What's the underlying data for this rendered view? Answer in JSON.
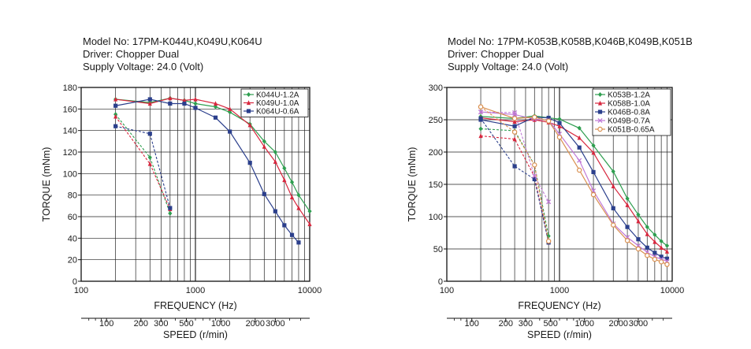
{
  "colors": {
    "series1": "#2e9e4f",
    "series2": "#d7263d",
    "series3": "#2b3f8c",
    "series4": "#c17ad6",
    "series5": "#d99050",
    "grid": "#222222",
    "frame": "#111111"
  },
  "chart_data": [
    {
      "type": "line",
      "header": [
        "Model No: 17PM-K044U,K049U,K064U",
        "Driver: Chopper Dual",
        "Supply Voltage: 24.0 (Volt)"
      ],
      "xlabel": "FREQUENCY (Hz)",
      "ylabel": "TORQUE (mNm)",
      "x2label": "SPEED (r/min)",
      "x_scale": "log",
      "xlim": [
        100,
        10000
      ],
      "ylim": [
        0,
        180
      ],
      "x_ticks": [
        "100",
        "1000",
        "10000"
      ],
      "y_ticks": [
        "0",
        "20",
        "40",
        "60",
        "80",
        "100",
        "120",
        "140",
        "160",
        "180"
      ],
      "speed_ticks": [
        "100",
        "200",
        "300",
        "500",
        "1000",
        "2000",
        "3000"
      ],
      "legend_position": "top-right",
      "grid": true,
      "series": [
        {
          "name": "K044U-1.2A",
          "color_key": "series1",
          "marker": "diamond",
          "pullin_x": [
            200,
            400,
            600
          ],
          "pullin_y": [
            155,
            115,
            63
          ],
          "pullout_x": [
            200,
            400,
            600,
            800,
            1000,
            1500,
            2000,
            3000,
            4000,
            5000,
            6000,
            7000,
            8000,
            10000
          ],
          "pullout_y": [
            169,
            166,
            170,
            168,
            165,
            162,
            157,
            146,
            130,
            120,
            105,
            92,
            80,
            65
          ]
        },
        {
          "name": "K049U-1.0A",
          "color_key": "series2",
          "marker": "triangle",
          "pullin_x": [
            200,
            400,
            600
          ],
          "pullin_y": [
            153,
            109,
            67
          ],
          "pullout_x": [
            200,
            400,
            600,
            800,
            1000,
            1500,
            2000,
            3000,
            4000,
            5000,
            6000,
            7000,
            8000,
            10000
          ],
          "pullout_y": [
            169,
            165,
            170,
            168,
            169,
            165,
            160,
            145,
            125,
            111,
            94,
            78,
            68,
            53
          ]
        },
        {
          "name": "K064U-0.6A",
          "color_key": "series3",
          "marker": "square",
          "pullin_x": [
            200,
            400,
            600
          ],
          "pullin_y": [
            144,
            137,
            68
          ],
          "pullout_x": [
            200,
            400,
            600,
            800,
            1000,
            1500,
            2000,
            3000,
            4000,
            5000,
            6000,
            7000,
            8000
          ],
          "pullout_y": [
            163,
            169,
            165,
            165,
            161,
            152,
            139,
            110,
            81,
            65,
            52,
            43,
            36
          ]
        }
      ]
    },
    {
      "type": "line",
      "header": [
        "Model No: 17PM-K053B,K058B,K046B,K049B,K051B",
        "Driver: Chopper Dual",
        "Supply Voltage: 24.0 (Volt)"
      ],
      "xlabel": "FREQUENCY (Hz)",
      "ylabel": "TORQUE (mNm)",
      "x2label": "SPEED (r/min)",
      "x_scale": "log",
      "xlim": [
        100,
        10000
      ],
      "ylim": [
        0,
        300
      ],
      "x_ticks": [
        "100",
        "1000",
        "10000"
      ],
      "y_ticks": [
        "0",
        "50",
        "100",
        "150",
        "200",
        "250",
        "300"
      ],
      "speed_ticks": [
        "100",
        "200",
        "300",
        "500",
        "1000",
        "2000",
        "3000"
      ],
      "legend_position": "top-right",
      "grid": true,
      "series": [
        {
          "name": "K053B-1.2A",
          "color_key": "series1",
          "marker": "diamond",
          "pullin_x": [
            200,
            400,
            600,
            800
          ],
          "pullin_y": [
            236,
            233,
            180,
            70
          ],
          "pullout_x": [
            200,
            400,
            600,
            800,
            1000,
            1500,
            2000,
            3000,
            4000,
            5000,
            6000,
            7000,
            8000,
            9000
          ],
          "pullout_y": [
            255,
            252,
            256,
            253,
            251,
            237,
            210,
            170,
            128,
            103,
            84,
            72,
            62,
            55
          ]
        },
        {
          "name": "K058B-1.0A",
          "color_key": "series2",
          "marker": "triangle",
          "pullin_x": [
            200,
            400,
            600,
            800
          ],
          "pullin_y": [
            225,
            220,
            162,
            60
          ],
          "pullout_x": [
            200,
            400,
            600,
            800,
            1000,
            1500,
            2000,
            3000,
            4000,
            5000,
            6000,
            7000,
            8000,
            9000
          ],
          "pullout_y": [
            253,
            247,
            250,
            246,
            240,
            222,
            199,
            147,
            118,
            93,
            73,
            61,
            52,
            46
          ]
        },
        {
          "name": "K046B-0.8A",
          "color_key": "series3",
          "marker": "square",
          "pullin_x": [
            200,
            400,
            600,
            800
          ],
          "pullin_y": [
            252,
            178,
            158,
            60
          ],
          "pullout_x": [
            200,
            400,
            600,
            800,
            1000,
            1500,
            2000,
            3000,
            4000,
            5000,
            6000,
            7000,
            8000,
            9000
          ],
          "pullout_y": [
            250,
            240,
            254,
            253,
            245,
            207,
            169,
            113,
            84,
            65,
            52,
            44,
            38,
            35
          ]
        },
        {
          "name": "K049B-0.7A",
          "color_key": "series4",
          "marker": "cross",
          "pullin_x": [
            200,
            400,
            600,
            800
          ],
          "pullin_y": [
            262,
            261,
            163,
            123
          ],
          "pullout_x": [
            200,
            400,
            600,
            800,
            1000,
            1500,
            2000,
            3000,
            4000,
            5000,
            6000,
            7000,
            8000,
            9000
          ],
          "pullout_y": [
            262,
            258,
            251,
            249,
            228,
            187,
            140,
            89,
            68,
            55,
            45,
            38,
            34,
            31
          ]
        },
        {
          "name": "K051B-0.65A",
          "color_key": "series5",
          "marker": "circle",
          "pullin_x": [
            200,
            400,
            600,
            800
          ],
          "pullin_y": [
            270,
            231,
            180,
            62
          ],
          "pullout_x": [
            200,
            400,
            600,
            800,
            1000,
            1500,
            2000,
            3000,
            4000,
            5000,
            6000,
            7000,
            8000,
            9000
          ],
          "pullout_y": [
            270,
            252,
            254,
            248,
            223,
            172,
            134,
            87,
            63,
            50,
            40,
            34,
            30,
            26
          ]
        }
      ]
    }
  ]
}
